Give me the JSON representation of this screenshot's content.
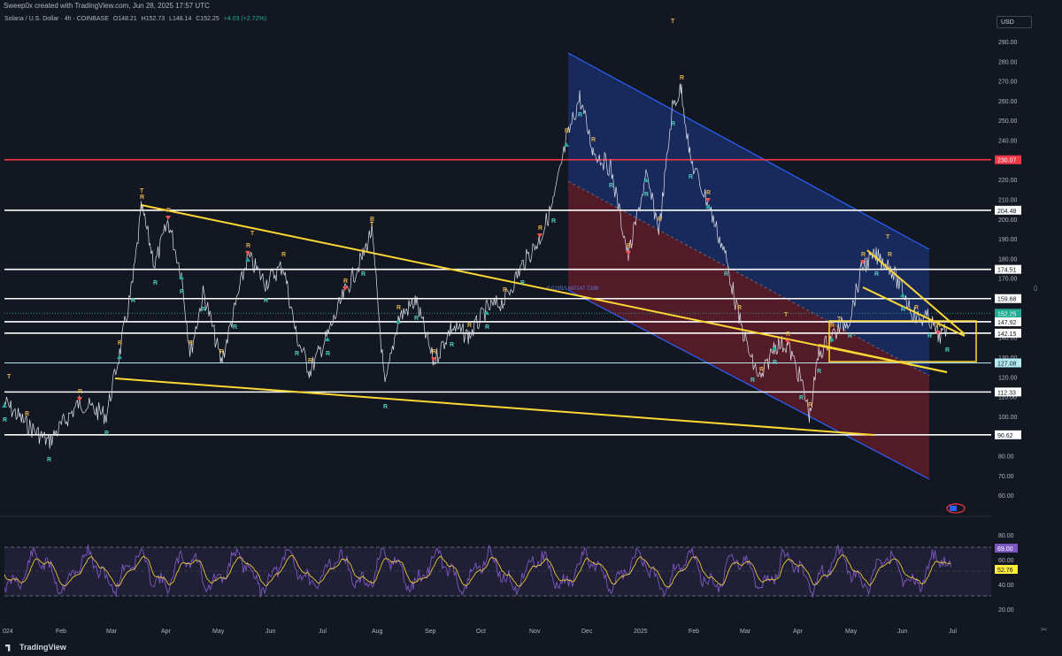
{
  "header": {
    "author_line": "Sweep0x created with TradingView.com, Jun 28, 2025 17:57 UTC"
  },
  "symbol": {
    "name": "Solana / U.S. Dollar · 4h · COINBASE",
    "open": "O148.21",
    "high": "H152.73",
    "low": "L148.14",
    "close": "C152.25",
    "change": "+4.03 (+2.72%)"
  },
  "currency_button": "USD",
  "price_axis": [
    "290.00",
    "280.00",
    "270.00",
    "260.00",
    "250.00",
    "240.00",
    "230.00",
    "220.00",
    "210.00",
    "200.00",
    "190.00",
    "180.00",
    "170.00",
    "160.00",
    "150.00",
    "140.00",
    "130.00",
    "120.00",
    "110.00",
    "100.00",
    "90.00",
    "80.00",
    "70.00",
    "60.00"
  ],
  "level_labels": [
    {
      "value": "230.07",
      "color": "#f23645"
    },
    {
      "value": "204.48",
      "color": "#ffffff"
    },
    {
      "value": "174.51",
      "color": "#ffffff"
    },
    {
      "value": "159.68",
      "color": "#ffffff"
    },
    {
      "value": "152.25",
      "color": "#22ab94"
    },
    {
      "value": "02:02:52",
      "color": "#22ab94"
    },
    {
      "value": "147.92",
      "color": "#ffffff"
    },
    {
      "value": "142.15",
      "color": "#ffffff"
    },
    {
      "value": "127.08",
      "color": "#b2ebf2"
    },
    {
      "value": "112.33",
      "color": "#ffffff"
    },
    {
      "value": "90.62",
      "color": "#ffffff"
    }
  ],
  "rsi_axis": [
    "80.00",
    "60.00",
    "40.00",
    "20.00"
  ],
  "rsi_labels": [
    {
      "value": "69.00",
      "color": "#7e57c2"
    },
    {
      "value": "52.76",
      "color": "#ffeb3b"
    }
  ],
  "time_axis": [
    "024",
    "Feb",
    "Mar",
    "Apr",
    "May",
    "Jun",
    "Jul",
    "Aug",
    "Sep",
    "Oct",
    "Nov",
    "Dec",
    "2025",
    "Feb",
    "Mar",
    "Apr",
    "May",
    "Jun",
    "Jul"
  ],
  "right_marker": "0",
  "channel_label": "0.0235/1497247.7286",
  "footer": {
    "brand": "TradingView"
  },
  "colors": {
    "background": "#131722",
    "support_line": "#ffffff",
    "resistance_line": "#f23645",
    "trendline": "#fdd835",
    "channel_upper": "#1e3a8a",
    "channel_lower": "#7f1d2d",
    "rsi_line": "#7e57c2",
    "rsi_signal": "#fdd835",
    "up_marker": "#26a69a",
    "down_marker": "#ef5350"
  },
  "icons": [
    "tradingview-logo-icon",
    "scissors-icon",
    "flag-icon"
  ]
}
